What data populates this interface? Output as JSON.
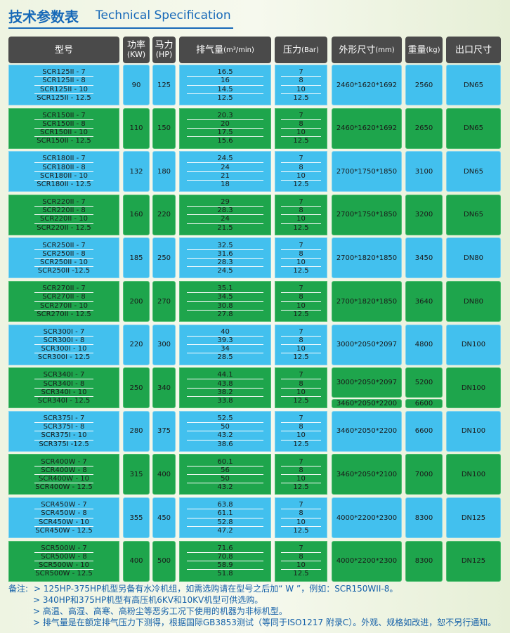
{
  "header": {
    "title_cn": "技术参数表",
    "title_en": "Technical Specification"
  },
  "table": {
    "columns": [
      {
        "title": "型号"
      },
      {
        "title": "功率",
        "unit": "(KW)"
      },
      {
        "title": "马力",
        "unit": "(HP)"
      },
      {
        "title": "排气量",
        "unit": "(m³/min)"
      },
      {
        "title": "压力",
        "unit": "(Bar)"
      },
      {
        "title": "外形尺寸",
        "unit": "(mm)"
      },
      {
        "title": "重量",
        "unit": "(kg)"
      },
      {
        "title": "出口尺寸"
      }
    ],
    "groups": [
      {
        "models": [
          "SCR125II - 7",
          "SCR125II - 8",
          "SCR125II - 10",
          "SCR125II - 12.5"
        ],
        "power": "90",
        "hp": "125",
        "flow": [
          "16.5",
          "16",
          "14.5",
          "12.5"
        ],
        "pressure": [
          "7",
          "8",
          "10",
          "12.5"
        ],
        "dims": [
          "2460*1620*1692"
        ],
        "weight": [
          "2560"
        ],
        "outlet": "DN65"
      },
      {
        "models": [
          "SCR150II - 7",
          "SCR150II - 8",
          "SCR150II - 10",
          "SCR150II - 12.5"
        ],
        "power": "110",
        "hp": "150",
        "flow": [
          "20.3",
          "20",
          "17.5",
          "15.6"
        ],
        "pressure": [
          "7",
          "8",
          "10",
          "12.5"
        ],
        "dims": [
          "2460*1620*1692"
        ],
        "weight": [
          "2650"
        ],
        "outlet": "DN65"
      },
      {
        "models": [
          "SCR180II - 7",
          "SCR180II - 8",
          "SCR180II - 10",
          "SCR180II - 12.5"
        ],
        "power": "132",
        "hp": "180",
        "flow": [
          "24.5",
          "24",
          "21",
          "18"
        ],
        "pressure": [
          "7",
          "8",
          "10",
          "12.5"
        ],
        "dims": [
          "2700*1750*1850"
        ],
        "weight": [
          "3100"
        ],
        "outlet": "DN65"
      },
      {
        "models": [
          "SCR220II - 7",
          "SCR220II - 8",
          "SCR220II - 10",
          "SCR220II - 12.5"
        ],
        "power": "160",
        "hp": "220",
        "flow": [
          "29",
          "28.3",
          "24",
          "21.5"
        ],
        "pressure": [
          "7",
          "8",
          "10",
          "12.5"
        ],
        "dims": [
          "2700*1750*1850"
        ],
        "weight": [
          "3200"
        ],
        "outlet": "DN65"
      },
      {
        "models": [
          "SCR250II - 7",
          "SCR250II - 8",
          "SCR250II - 10",
          "SCR250II -12.5"
        ],
        "power": "185",
        "hp": "250",
        "flow": [
          "32.5",
          "31.6",
          "28.3",
          "24.5"
        ],
        "pressure": [
          "7",
          "8",
          "10",
          "12.5"
        ],
        "dims": [
          "2700*1820*1850"
        ],
        "weight": [
          "3450"
        ],
        "outlet": "DN80"
      },
      {
        "models": [
          "SCR270II - 7",
          "SCR270II - 8",
          "SCR270II - 10",
          "SCR270II - 12.5"
        ],
        "power": "200",
        "hp": "270",
        "flow": [
          "35.1",
          "34.5",
          "30.8",
          "27.8"
        ],
        "pressure": [
          "7",
          "8",
          "10",
          "12.5"
        ],
        "dims": [
          "2700*1820*1850"
        ],
        "weight": [
          "3640"
        ],
        "outlet": "DN80"
      },
      {
        "models": [
          "SCR300I - 7",
          "SCR300I - 8",
          "SCR300I - 10",
          "SCR300I - 12.5"
        ],
        "power": "220",
        "hp": "300",
        "flow": [
          "40",
          "39.3",
          "34",
          "28.5"
        ],
        "pressure": [
          "7",
          "8",
          "10",
          "12.5"
        ],
        "dims": [
          "3000*2050*2097"
        ],
        "weight": [
          "4800"
        ],
        "outlet": "DN100"
      },
      {
        "models": [
          "SCR340I - 7",
          "SCR340I - 8",
          "SCR340I - 10",
          "SCR340I - 12.5"
        ],
        "power": "250",
        "hp": "340",
        "flow": [
          "44.1",
          "43.8",
          "38.2",
          "33.8"
        ],
        "pressure": [
          "7",
          "8",
          "10",
          "12.5"
        ],
        "dims": [
          "3000*2050*2097",
          "3460*2050*2200"
        ],
        "weight": [
          "5200",
          "6600"
        ],
        "outlet": "DN100"
      },
      {
        "models": [
          "SCR375I - 7",
          "SCR375I - 8",
          "SCR375I - 10",
          "SCR375I -12.5"
        ],
        "power": "280",
        "hp": "375",
        "flow": [
          "52.5",
          "50",
          "43.2",
          "38.6"
        ],
        "pressure": [
          "7",
          "8",
          "10",
          "12.5"
        ],
        "dims": [
          "3460*2050*2200"
        ],
        "weight": [
          "6600"
        ],
        "outlet": "DN100"
      },
      {
        "models": [
          "SCR400W - 7",
          "SCR400W - 8",
          "SCR400W - 10",
          "SCR400W - 12.5"
        ],
        "power": "315",
        "hp": "400",
        "flow": [
          "60.1",
          "56",
          "50",
          "43.2"
        ],
        "pressure": [
          "7",
          "8",
          "10",
          "12.5"
        ],
        "dims": [
          "3460*2050*2100"
        ],
        "weight": [
          "7000"
        ],
        "outlet": "DN100"
      },
      {
        "models": [
          "SCR450W - 7",
          "SCR450W - 8",
          "SCR450W - 10",
          "SCR450W - 12.5"
        ],
        "power": "355",
        "hp": "450",
        "flow": [
          "63.8",
          "61.1",
          "52.8",
          "47.2"
        ],
        "pressure": [
          "7",
          "8",
          "10",
          "12.5"
        ],
        "dims": [
          "4000*2200*2300"
        ],
        "weight": [
          "8300"
        ],
        "outlet": "DN125"
      },
      {
        "models": [
          "SCR500W - 7",
          "SCR500W - 8",
          "SCR500W - 10",
          "SCR500W - 12.5"
        ],
        "power": "400",
        "hp": "500",
        "flow": [
          "71.6",
          "70.8",
          "58.9",
          "51.8"
        ],
        "pressure": [
          "7",
          "8",
          "10",
          "12.5"
        ],
        "dims": [
          "4000*2200*2300"
        ],
        "weight": [
          "8300"
        ],
        "outlet": "DN125"
      }
    ]
  },
  "notes": {
    "label": "备注:",
    "items": [
      "> 125HP-375HP机型另备有水冷机组，如需选购请在型号之后加“ W ”，例如：SCR150WII-8。",
      "> 340HP和375HP机型有高压机6KV和10KV机型可供选购。",
      "> 高温、高湿、高寒、高粉尘等恶劣工况下使用的机器为非标机型。",
      "> 排气量是在额定排气压力下测得，根据国际GB3853测试（等同于ISO1217 附录C）。外观、规格如改进，恕不另行通知。"
    ]
  }
}
